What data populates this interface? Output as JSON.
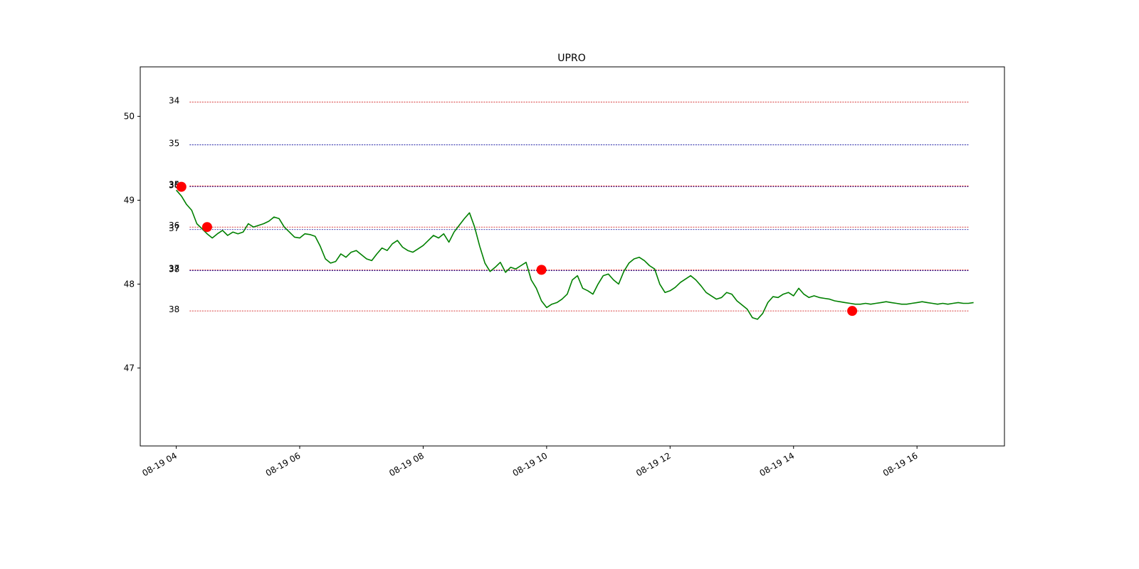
{
  "chart_data": {
    "type": "line",
    "title": "UPRO",
    "xlabel": "",
    "ylabel": "",
    "grid": false,
    "xlim": [
      "2019-08-19 03:25",
      "2019-08-19 17:25"
    ],
    "ylim": [
      46.07,
      50.59
    ],
    "x_ticks": [
      "08-19 04",
      "08-19 06",
      "08-19 08",
      "08-19 10",
      "08-19 12",
      "08-19 14",
      "08-19 16"
    ],
    "y_ticks": [
      "47",
      "48",
      "49",
      "50"
    ],
    "y_tick_values": [
      47,
      48,
      49,
      50
    ],
    "line_color": "#008000",
    "marker_color": "#ff0000",
    "series": [
      {
        "x": [
          "04:00",
          "04:05",
          "04:10",
          "04:15",
          "04:20",
          "04:25",
          "04:30",
          "04:35",
          "04:40",
          "04:45",
          "04:50",
          "04:55",
          "05:00",
          "05:05",
          "05:10",
          "05:15",
          "05:20",
          "05:25",
          "05:30",
          "05:35",
          "05:40",
          "05:45",
          "05:50",
          "05:55",
          "06:00",
          "06:05",
          "06:10",
          "06:15",
          "06:20",
          "06:25",
          "06:30",
          "06:35",
          "06:40",
          "06:45",
          "06:50",
          "06:55",
          "07:00",
          "07:05",
          "07:10",
          "07:15",
          "07:20",
          "07:25",
          "07:30",
          "07:35",
          "07:40",
          "07:45",
          "07:50",
          "07:55",
          "08:00",
          "08:05",
          "08:10",
          "08:15",
          "08:20",
          "08:25",
          "08:30",
          "08:35",
          "08:40",
          "08:45",
          "08:50",
          "08:55",
          "09:00",
          "09:05",
          "09:10",
          "09:15",
          "09:20",
          "09:25",
          "09:30",
          "09:35",
          "09:40",
          "09:45",
          "09:50",
          "09:55",
          "10:00",
          "10:05",
          "10:10",
          "10:15",
          "10:20",
          "10:25",
          "10:30",
          "10:35",
          "10:40",
          "10:45",
          "10:50",
          "10:55",
          "11:00",
          "11:05",
          "11:10",
          "11:15",
          "11:20",
          "11:25",
          "11:30",
          "11:35",
          "11:40",
          "11:45",
          "11:50",
          "11:55",
          "12:00",
          "12:05",
          "12:10",
          "12:15",
          "12:20",
          "12:25",
          "12:30",
          "12:35",
          "12:40",
          "12:45",
          "12:50",
          "12:55",
          "13:00",
          "13:05",
          "13:10",
          "13:15",
          "13:20",
          "13:25",
          "13:30",
          "13:35",
          "13:40",
          "13:45",
          "13:50",
          "13:55",
          "14:00",
          "14:05",
          "14:10",
          "14:15",
          "14:20",
          "14:25",
          "14:30",
          "14:35",
          "14:40",
          "14:45",
          "14:50",
          "14:55",
          "15:00",
          "15:05",
          "15:10",
          "15:15",
          "15:20",
          "15:25",
          "15:30",
          "15:35",
          "15:40",
          "15:45",
          "15:50",
          "15:55",
          "16:00",
          "16:05",
          "16:10",
          "16:15",
          "16:20",
          "16:25",
          "16:30",
          "16:35",
          "16:40",
          "16:45",
          "16:50",
          "16:55"
        ],
        "values": [
          49.12,
          49.05,
          48.95,
          48.88,
          48.72,
          48.66,
          48.6,
          48.55,
          48.6,
          48.64,
          48.58,
          48.62,
          48.6,
          48.62,
          48.72,
          48.68,
          48.7,
          48.72,
          48.75,
          48.8,
          48.78,
          48.68,
          48.62,
          48.56,
          48.55,
          48.6,
          48.59,
          48.57,
          48.45,
          48.3,
          48.25,
          48.27,
          48.36,
          48.32,
          48.38,
          48.4,
          48.35,
          48.3,
          48.28,
          48.36,
          48.43,
          48.4,
          48.48,
          48.52,
          48.44,
          48.4,
          48.38,
          48.42,
          48.46,
          48.52,
          48.58,
          48.55,
          48.6,
          48.5,
          48.62,
          48.7,
          48.78,
          48.85,
          48.68,
          48.45,
          48.25,
          48.15,
          48.2,
          48.26,
          48.14,
          48.2,
          48.18,
          48.22,
          48.26,
          48.05,
          47.95,
          47.8,
          47.72,
          47.76,
          47.78,
          47.82,
          47.88,
          48.05,
          48.1,
          47.95,
          47.92,
          47.88,
          48.0,
          48.1,
          48.12,
          48.05,
          48.0,
          48.15,
          48.25,
          48.3,
          48.32,
          48.28,
          48.22,
          48.18,
          48.0,
          47.9,
          47.92,
          47.96,
          48.02,
          48.06,
          48.1,
          48.05,
          47.98,
          47.9,
          47.86,
          47.82,
          47.84,
          47.9,
          47.88,
          47.8,
          47.75,
          47.7,
          47.6,
          47.58,
          47.65,
          47.78,
          47.85,
          47.84,
          47.88,
          47.9,
          47.86,
          47.95,
          47.88,
          47.84,
          47.86,
          47.84,
          47.83,
          47.82,
          47.8,
          47.79,
          47.78,
          47.77,
          47.76,
          47.76,
          47.77,
          47.76,
          47.77,
          47.78,
          47.79,
          47.78,
          47.77,
          47.76,
          47.76,
          47.77,
          47.78,
          47.79,
          47.78,
          47.77,
          47.76,
          47.77,
          47.76,
          47.77,
          47.78,
          47.77,
          47.77,
          47.78
        ]
      }
    ],
    "levels": [
      {
        "label": "34",
        "value": 50.17,
        "color": "#cc0000"
      },
      {
        "label": "35",
        "value": 49.66,
        "color": "#000099"
      },
      {
        "label": "35",
        "value": 49.17,
        "color": "#cc0000"
      },
      {
        "label": "36",
        "value": 49.16,
        "color": "#000099"
      },
      {
        "label": "36",
        "value": 48.68,
        "color": "#cc0000"
      },
      {
        "label": "37",
        "value": 48.65,
        "color": "#000099"
      },
      {
        "label": "37",
        "value": 48.17,
        "color": "#cc0000"
      },
      {
        "label": "38",
        "value": 48.16,
        "color": "#000099"
      },
      {
        "label": "38",
        "value": 47.68,
        "color": "#cc0000"
      }
    ],
    "markers": [
      {
        "x": "04:05",
        "value": 49.16
      },
      {
        "x": "04:30",
        "value": 48.68
      },
      {
        "x": "09:55",
        "value": 48.17
      },
      {
        "x": "14:57",
        "value": 47.68
      }
    ]
  }
}
